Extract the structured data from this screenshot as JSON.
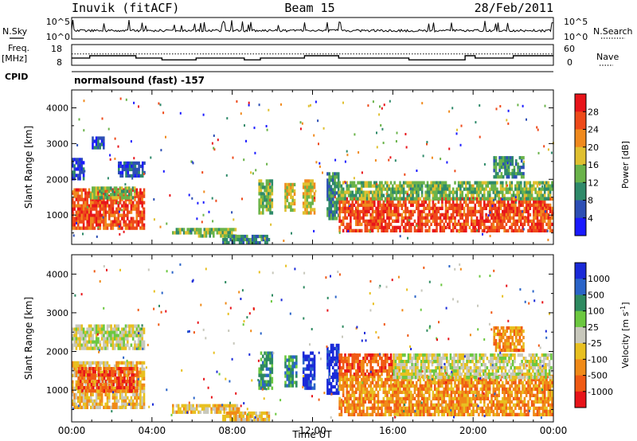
{
  "header": {
    "station": "Inuvik (fitACF)",
    "beam": "Beam 15",
    "date": "28/Feb/2011"
  },
  "strip_labels": {
    "nsky": "N.Sky",
    "nsearch": "N.Search",
    "freq_top": "Freq.",
    "freq_unit": "[MHz]",
    "nave": "Nave",
    "cpid": "CPID"
  },
  "cpid_text": "normalsound (fast) -157",
  "chart_data": [
    {
      "type": "line",
      "panel": "noise",
      "y_left_ticks": [
        "10^5",
        "10^0"
      ],
      "y_right_ticks": [
        "10^5",
        "10^0"
      ],
      "scale": "log",
      "series": [
        {
          "name": "N.Sky"
        },
        {
          "name": "N.Search"
        }
      ],
      "colors": {
        "nsky": "#000000",
        "nsearch": "#000000"
      }
    },
    {
      "type": "line",
      "panel": "frequency",
      "y_left_ticks": [
        "18",
        "8"
      ],
      "y_right_ticks": [
        "60",
        "0"
      ],
      "ylim_left": [
        8,
        18
      ],
      "ylim_right": [
        0,
        60
      ],
      "series": [
        {
          "name": "Freq.",
          "x": [
            0,
            0.9,
            0.9,
            3.2,
            3.2,
            4.5,
            4.5,
            6.2,
            6.2,
            8.6,
            8.6,
            9.4,
            9.4,
            11.6,
            11.6,
            13.3,
            13.3,
            16.8,
            16.8,
            19.6,
            19.6,
            20.1,
            20.1,
            22.0,
            22.0,
            23.8,
            23.8,
            24
          ],
          "y": [
            11.5,
            11.5,
            12.6,
            12.6,
            11.5,
            11.5,
            10.6,
            10.6,
            11.5,
            11.5,
            10.6,
            10.6,
            11.5,
            11.5,
            12.6,
            12.6,
            11.5,
            11.5,
            10.6,
            10.6,
            12.6,
            12.6,
            11.5,
            11.5,
            12.6,
            12.6,
            12.6,
            12.6
          ]
        },
        {
          "name": "Nave",
          "style": "dotted",
          "y_const": 33
        }
      ]
    },
    {
      "type": "heatmap",
      "panel": "power",
      "ylabel": "Slant Range [km]",
      "y_ticks": [
        1000,
        2000,
        3000,
        4000
      ],
      "ylim": [
        180,
        4500
      ],
      "xlim": [
        0,
        24
      ],
      "cbar_label": "Power [dB]",
      "cbar_ticks": [
        "4",
        "8",
        "12",
        "16",
        "20",
        "24",
        "28"
      ],
      "cbar_colors": [
        "#1a1aff",
        "#2d4fb5",
        "#2f8a6a",
        "#6ab34a",
        "#e0c030",
        "#f08a1e",
        "#ee4a1a",
        "#e8141a"
      ],
      "regions": [
        {
          "t0": 0.0,
          "t1": 3.6,
          "r0": 650,
          "r1": 1750,
          "lvl": 6
        },
        {
          "t0": 0.9,
          "t1": 3.1,
          "r0": 1500,
          "r1": 1800,
          "lvl": 3
        },
        {
          "t0": 0.0,
          "t1": 0.6,
          "r0": 2000,
          "r1": 2600,
          "lvl": 1
        },
        {
          "t0": 1.0,
          "t1": 1.6,
          "r0": 2900,
          "r1": 3200,
          "lvl": 1
        },
        {
          "t0": 2.3,
          "t1": 3.6,
          "r0": 2100,
          "r1": 2500,
          "lvl": 1
        },
        {
          "t0": 5.0,
          "t1": 6.2,
          "r0": 530,
          "r1": 640,
          "lvl": 3
        },
        {
          "t0": 6.2,
          "t1": 8.2,
          "r0": 430,
          "r1": 640,
          "lvl": 3
        },
        {
          "t0": 7.5,
          "t1": 9.8,
          "r0": 260,
          "r1": 450,
          "lvl": 2
        },
        {
          "t0": 9.3,
          "t1": 10.0,
          "r0": 1050,
          "r1": 2000,
          "lvl": 3
        },
        {
          "t0": 10.6,
          "t1": 11.1,
          "r0": 1100,
          "r1": 1900,
          "lvl": 4
        },
        {
          "t0": 11.5,
          "t1": 12.1,
          "r0": 1050,
          "r1": 2000,
          "lvl": 4
        },
        {
          "t0": 12.7,
          "t1": 13.3,
          "r0": 900,
          "r1": 2200,
          "lvl": 2
        },
        {
          "t0": 13.3,
          "t1": 23.9,
          "r0": 550,
          "r1": 1500,
          "lvl": 6
        },
        {
          "t0": 13.3,
          "t1": 23.9,
          "r0": 1500,
          "r1": 1950,
          "lvl": 3
        },
        {
          "t0": 21.0,
          "t1": 22.5,
          "r0": 2050,
          "r1": 2650,
          "lvl": 2
        }
      ]
    },
    {
      "type": "heatmap",
      "panel": "velocity",
      "ylabel": "Slant Range [km]",
      "y_ticks": [
        1000,
        2000,
        3000,
        4000
      ],
      "ylim": [
        180,
        4500
      ],
      "xlim": [
        0,
        24
      ],
      "x_ticks": [
        "00:00",
        "04:00",
        "08:00",
        "12:00",
        "16:00",
        "20:00",
        "00:00"
      ],
      "xlabel": "Time UT",
      "cbar_label": "Velocity [m s",
      "cbar_label_sup": "-1",
      "cbar_label_tail": "]",
      "cbar_ticks": [
        "1000",
        "500",
        "100",
        "25",
        "-25",
        "-100",
        "-500",
        "-1000"
      ],
      "cbar_colors": [
        "#1a2ad8",
        "#2a64c8",
        "#2e8a60",
        "#6cc840",
        "#c8c8bc",
        "#e8c020",
        "#f08a18",
        "#f05a14",
        "#e8141a"
      ],
      "regions": [
        {
          "t0": 0.0,
          "t1": 3.6,
          "r0": 550,
          "r1": 1750,
          "lvl": 5
        },
        {
          "t0": 0.3,
          "t1": 3.3,
          "r0": 1000,
          "r1": 1600,
          "lvl": 7
        },
        {
          "t0": 0.0,
          "t1": 3.6,
          "r0": 2100,
          "r1": 2700,
          "lvl": 4
        },
        {
          "t0": 5.0,
          "t1": 8.3,
          "r0": 430,
          "r1": 640,
          "lvl": 5
        },
        {
          "t0": 7.5,
          "t1": 9.8,
          "r0": 260,
          "r1": 450,
          "lvl": 5
        },
        {
          "t0": 9.3,
          "t1": 10.0,
          "r0": 1050,
          "r1": 2000,
          "lvl": 2
        },
        {
          "t0": 10.6,
          "t1": 11.2,
          "r0": 1100,
          "r1": 1900,
          "lvl": 2
        },
        {
          "t0": 11.5,
          "t1": 12.1,
          "r0": 1050,
          "r1": 2000,
          "lvl": 0
        },
        {
          "t0": 12.7,
          "t1": 13.3,
          "r0": 900,
          "r1": 2200,
          "lvl": 0
        },
        {
          "t0": 13.3,
          "t1": 23.9,
          "r0": 400,
          "r1": 1400,
          "lvl": 6
        },
        {
          "t0": 13.3,
          "t1": 16.0,
          "r0": 1400,
          "r1": 1950,
          "lvl": 7
        },
        {
          "t0": 16.0,
          "t1": 23.9,
          "r0": 1300,
          "r1": 1950,
          "lvl": 4
        },
        {
          "t0": 21.0,
          "t1": 22.5,
          "r0": 2050,
          "r1": 2650,
          "lvl": 6
        }
      ]
    }
  ]
}
